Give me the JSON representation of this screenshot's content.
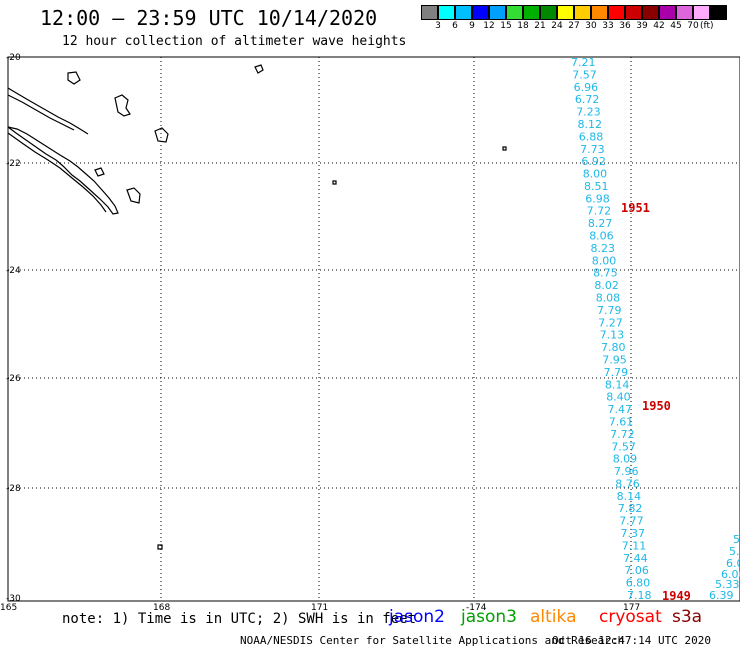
{
  "header": {
    "title": "12:00 – 23:59 UTC 10/14/2020",
    "subtitle": "12 hour collection of altimeter wave heights"
  },
  "legend": {
    "unit": "(ft)",
    "bins": [
      {
        "color": "#808080",
        "label": ""
      },
      {
        "color": "#00ffff",
        "label": "3"
      },
      {
        "color": "#00bfff",
        "label": "6"
      },
      {
        "color": "#0000ff",
        "label": "9"
      },
      {
        "color": "#00a0ff",
        "label": "12"
      },
      {
        "color": "#33dd33",
        "label": "15"
      },
      {
        "color": "#00b000",
        "label": "18"
      },
      {
        "color": "#008800",
        "label": "21"
      },
      {
        "color": "#ffff00",
        "label": "24"
      },
      {
        "color": "#ffcc00",
        "label": "27"
      },
      {
        "color": "#ff8800",
        "label": "30"
      },
      {
        "color": "#ff0000",
        "label": "33"
      },
      {
        "color": "#cc0000",
        "label": "36"
      },
      {
        "color": "#880000",
        "label": "39"
      },
      {
        "color": "#aa00aa",
        "label": "42"
      },
      {
        "color": "#dd66dd",
        "label": "45"
      },
      {
        "color": "#ffaaff",
        "label": "70"
      },
      {
        "color": "#000000",
        "label": ""
      }
    ]
  },
  "map": {
    "lat_labels": [
      "-20",
      "-22",
      "-24",
      "-26",
      "-28",
      "-30"
    ],
    "lon_labels": [
      "165",
      "168",
      "171",
      "-174",
      "177"
    ],
    "track_main": [
      "7.21",
      "7.57",
      "6.96",
      "6.72",
      "7.23",
      "8.12",
      "6.88",
      "7.73",
      "6.92",
      "8.00",
      "8.51",
      "6.98",
      "7.72",
      "8.27",
      "8.06",
      "8.23",
      "8.00",
      "8.75",
      "8.02",
      "8.08",
      "7.79",
      "7.27",
      "7.13",
      "7.80",
      "7.95",
      "7.79",
      "8.14",
      "8.40",
      "7.47",
      "7.61",
      "7.72",
      "7.57",
      "8.09",
      "7.96",
      "8.76",
      "8.14",
      "7.82",
      "7.77",
      "7.37",
      "7.11",
      "7.44",
      "7.06",
      "6.80",
      "7.18"
    ],
    "track_right": [
      "5",
      "5.",
      "6.0",
      "6.06",
      "5.33",
      "6.39"
    ],
    "time_labels": [
      "1951",
      "1950",
      "1949"
    ]
  },
  "footer": {
    "note": "note: 1) Time is in UTC; 2) SWH is in feet",
    "satellites": [
      {
        "name": "jason2",
        "color": "#0000ff"
      },
      {
        "name": "jason3",
        "color": "#00a000"
      },
      {
        "name": "altika",
        "color": "#ff8800"
      },
      {
        "name": "cryosat",
        "color": "#ff0000"
      },
      {
        "name": "s3a",
        "color": "#880000"
      }
    ],
    "credit": "NOAA/NESDIS Center for Satellite Applications and Research",
    "timestamp": "Oct 16 12:47:14 UTC 2020"
  }
}
